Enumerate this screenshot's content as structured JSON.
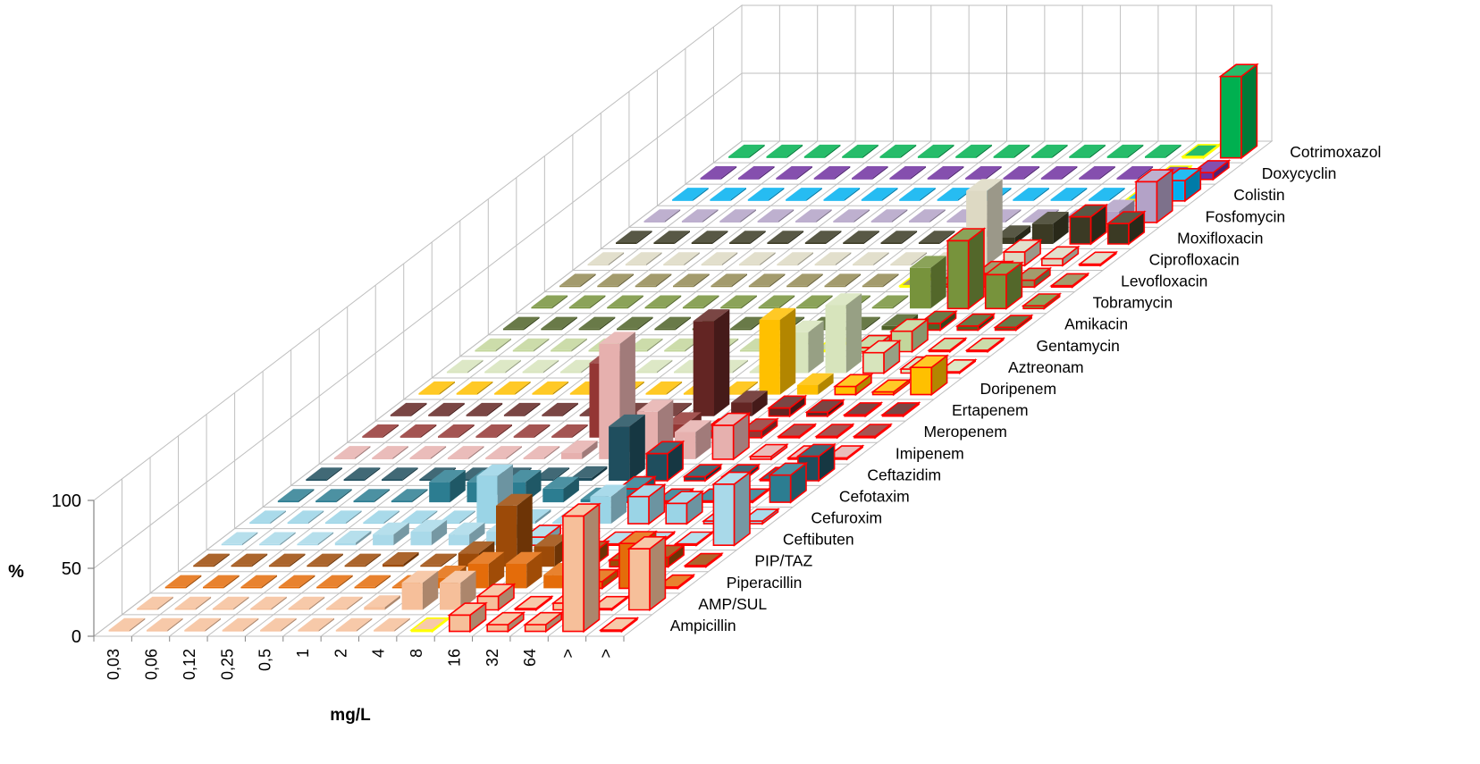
{
  "chart_data": {
    "type": "bar3d",
    "xlabel": "mg/L",
    "ylabel": "%",
    "ylim": [
      0,
      100
    ],
    "z_ticks": [
      "0",
      "50",
      "100"
    ],
    "categories": [
      "0,03",
      "0,06",
      "0,12",
      "0,25",
      "0,5",
      "1",
      "2",
      "4",
      "8",
      "16",
      "32",
      "64",
      ">",
      ">"
    ],
    "series": [
      {
        "name": "Ampicillin",
        "color": "#f6bf9a",
        "values": [
          1,
          1,
          1,
          1,
          1,
          1,
          1,
          1,
          1,
          12,
          5,
          5,
          85,
          1
        ],
        "resistant_from": 9
      },
      {
        "name": "AMP/SUL",
        "color": "#f6bf9a",
        "values": [
          1,
          1,
          1,
          1,
          1,
          1,
          2,
          20,
          20,
          10,
          1,
          5,
          1,
          45
        ],
        "resistant_from": 9
      },
      {
        "name": "Piperacillin",
        "color": "#e46c0a",
        "values": [
          1,
          1,
          1,
          1,
          1,
          1,
          1,
          8,
          18,
          18,
          10,
          5,
          33,
          1
        ],
        "resistant_from": 11
      },
      {
        "name": "PIP/TAZ",
        "color": "#9c4a08",
        "values": [
          1,
          1,
          1,
          1,
          1,
          2,
          1,
          10,
          45,
          15,
          10,
          5,
          7,
          1
        ],
        "resistant_from": 10
      },
      {
        "name": "Ceftibuten",
        "color": "#a9d9e9",
        "values": [
          1,
          1,
          1,
          2,
          8,
          10,
          8,
          10,
          6,
          1,
          1,
          1,
          1,
          45
        ],
        "resistant_from": 8
      },
      {
        "name": "Cefuroxim",
        "color": "#9ad4e6",
        "values": [
          1,
          1,
          1,
          1,
          1,
          1,
          35,
          2,
          1,
          20,
          20,
          15,
          2,
          2
        ],
        "resistant_from": 10
      },
      {
        "name": "Cefotaxim",
        "color": "#2c7d91",
        "values": [
          1,
          1,
          1,
          1,
          15,
          15,
          15,
          10,
          2,
          10,
          1,
          1,
          1,
          20
        ],
        "resistant_from": 9
      },
      {
        "name": "Ceftazidim",
        "color": "#1f4e5e",
        "values": [
          1,
          1,
          1,
          1,
          1,
          1,
          1,
          2,
          40,
          20,
          3,
          3,
          1,
          18
        ],
        "resistant_from": 9
      },
      {
        "name": "Imipenem",
        "color": "#e6b0ae",
        "values": [
          1,
          1,
          1,
          1,
          1,
          1,
          5,
          85,
          35,
          20,
          25,
          2,
          1,
          1
        ],
        "resistant_from": 10
      },
      {
        "name": "Meropenem",
        "color": "#943634",
        "values": [
          1,
          1,
          1,
          1,
          1,
          1,
          55,
          5,
          10,
          5,
          5,
          1,
          1,
          1
        ],
        "resistant_from": 9
      },
      {
        "name": "Ertapenem",
        "color": "#632523",
        "values": [
          1,
          1,
          1,
          1,
          1,
          1,
          1,
          1,
          70,
          10,
          6,
          3,
          1,
          1
        ],
        "resistant_from": 10
      },
      {
        "name": "Doripenem",
        "color": "#ffc000",
        "values": [
          1,
          1,
          1,
          1,
          1,
          1,
          1,
          1,
          1,
          55,
          7,
          6,
          2,
          20
        ],
        "resistant_from": 11
      },
      {
        "name": "Aztreonam",
        "color": "#d7e4bc",
        "values": [
          1,
          1,
          1,
          1,
          1,
          1,
          1,
          1,
          1,
          30,
          50,
          15,
          3,
          1
        ],
        "resistant_from": 11
      },
      {
        "name": "Gentamycin",
        "color": "#c3d69b",
        "values": [
          1,
          1,
          1,
          1,
          1,
          1,
          1,
          1,
          1,
          1,
          3,
          15,
          1,
          1
        ],
        "resistant_from": 10
      },
      {
        "name": "Amikacin",
        "color": "#4f6228",
        "values": [
          1,
          1,
          1,
          1,
          1,
          1,
          1,
          1,
          1,
          1,
          3,
          5,
          3,
          2
        ],
        "resistant_from": 11
      },
      {
        "name": "Tobramycin",
        "color": "#77933c",
        "values": [
          1,
          1,
          1,
          1,
          1,
          1,
          1,
          1,
          1,
          1,
          30,
          50,
          25,
          2
        ],
        "resistant_from": 11
      },
      {
        "name": "Levofloxacin",
        "color": "#938953",
        "values": [
          1,
          1,
          1,
          1,
          1,
          1,
          1,
          1,
          1,
          1,
          2,
          10,
          5,
          1
        ],
        "resistant_from": 10
      },
      {
        "name": "Ciprofloxacin",
        "color": "#ddd9c3",
        "values": [
          1,
          1,
          1,
          1,
          1,
          1,
          1,
          1,
          1,
          1,
          55,
          10,
          5,
          1
        ],
        "resistant_from": 11
      },
      {
        "name": "Moxifloxacin",
        "color": "#3b3a24",
        "values": [
          1,
          1,
          1,
          1,
          1,
          1,
          1,
          1,
          1,
          1,
          5,
          15,
          20,
          15
        ],
        "resistant_from": 12
      },
      {
        "name": "Fosfomycin",
        "color": "#b3a2c7",
        "values": [
          1,
          1,
          1,
          1,
          1,
          1,
          1,
          1,
          1,
          1,
          1,
          1,
          8,
          30
        ],
        "resistant_from": 13
      },
      {
        "name": "Colistin",
        "color": "#00b0f0",
        "values": [
          1,
          1,
          1,
          1,
          1,
          1,
          1,
          1,
          1,
          1,
          1,
          1,
          1,
          15
        ],
        "resistant_from": 13
      },
      {
        "name": "Doxycyclin",
        "color": "#7030a0",
        "values": [
          1,
          1,
          1,
          1,
          1,
          1,
          1,
          1,
          1,
          1,
          1,
          1,
          1,
          5
        ],
        "resistant_from": 13
      },
      {
        "name": "Cotrimoxazol",
        "color": "#00b050",
        "values": [
          1,
          1,
          1,
          1,
          1,
          1,
          1,
          1,
          1,
          1,
          1,
          1,
          1,
          60
        ],
        "resistant_from": 13
      }
    ],
    "grid": true,
    "legend": "none"
  },
  "colors": {
    "grid": "#bfbfbf",
    "axis": "#868686",
    "resistant_outline": "#ff0000",
    "intermediate_outline": "#ffff00"
  }
}
